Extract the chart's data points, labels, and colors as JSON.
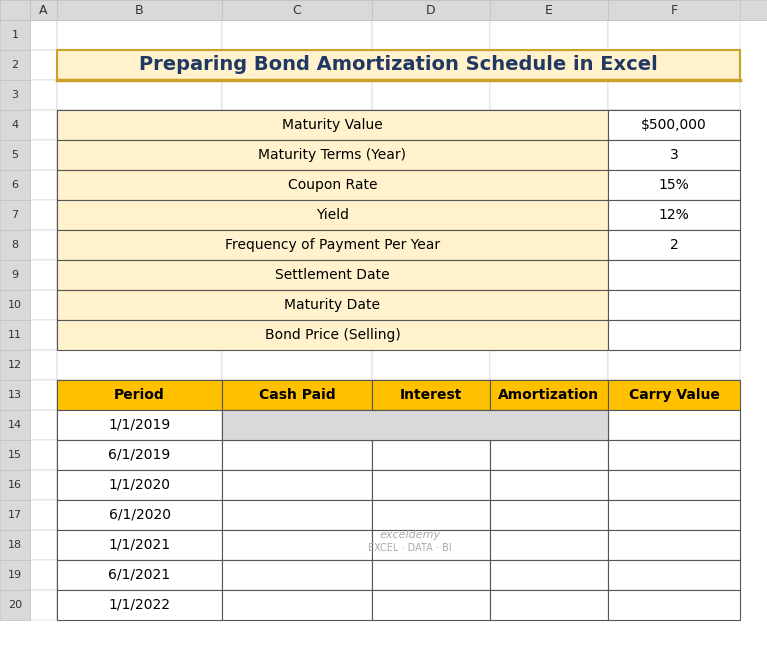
{
  "title": "Preparing Bond Amortization Schedule in Excel",
  "title_bg": "#FFF2CC",
  "title_border": "#C9A227",
  "title_fontsize": 14,
  "title_color": "#1F3864",
  "info_rows": [
    {
      "label": "Maturity Value",
      "value": "$500,000"
    },
    {
      "label": "Maturity Terms (Year)",
      "value": "3"
    },
    {
      "label": "Coupon Rate",
      "value": "15%"
    },
    {
      "label": "Yield",
      "value": "12%"
    },
    {
      "label": "Frequency of Payment Per Year",
      "value": "2"
    },
    {
      "label": "Settlement Date",
      "value": ""
    },
    {
      "label": "Maturity Date",
      "value": ""
    },
    {
      "label": "Bond Price (Selling)",
      "value": ""
    }
  ],
  "info_label_bg": "#FFF2CC",
  "info_value_bg": "#FFFFFF",
  "info_border": "#555555",
  "info_fontsize": 10,
  "sched_headers": [
    "Period",
    "Cash Paid",
    "Interest",
    "Amortization",
    "Carry Value"
  ],
  "sched_header_bg": "#FFC000",
  "sched_header_fontsize": 10,
  "sched_rows": [
    "1/1/2019",
    "6/1/2019",
    "1/1/2020",
    "6/1/2020",
    "1/1/2021",
    "6/1/2021",
    "1/1/2022"
  ],
  "sched_row_bg": "#FFFFFF",
  "sched_first_row_merged_bg": "#D9D9D9",
  "sched_border": "#555555",
  "sched_fontsize": 10,
  "excel_bg": "#FFFFFF",
  "col_header_bg": "#D9D9D9",
  "row_header_bg": "#D9D9D9",
  "grid_line_color": "#C0C0C0",
  "col_labels": [
    "A",
    "B",
    "C",
    "D",
    "E",
    "F"
  ],
  "row_labels": [
    "1",
    "2",
    "3",
    "4",
    "5",
    "6",
    "7",
    "8",
    "9",
    "10",
    "11",
    "12",
    "13",
    "14",
    "15",
    "16",
    "17",
    "18",
    "19",
    "20"
  ],
  "watermark_line1": "exceldemy",
  "watermark_line2": "EXCEL · DATA · BI",
  "watermark_color": "#AAAAAA",
  "watermark_fontsize": 8
}
